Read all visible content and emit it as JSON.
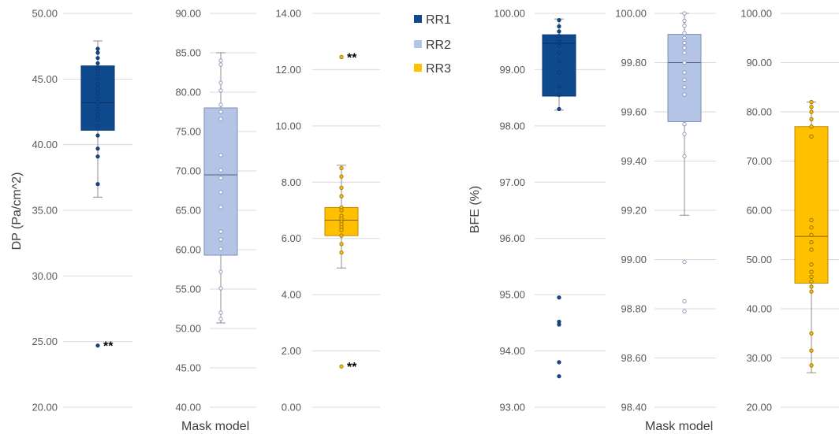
{
  "legend": [
    {
      "name": "RR1",
      "color": "#0f4a8f"
    },
    {
      "name": "RR2",
      "color": "#b4c4e6"
    },
    {
      "name": "RR3",
      "color": "#ffc000"
    }
  ],
  "xlabel": "Mask model",
  "chart_data": [
    {
      "type": "box",
      "group": "DP",
      "ylabel": "DP (Pa/cm^2)",
      "series": "RR1",
      "ylim": [
        20,
        50
      ],
      "ticks": [
        "20.00",
        "25.00",
        "30.00",
        "35.00",
        "40.00",
        "45.00",
        "50.00"
      ],
      "box": {
        "whisker_low": 36.0,
        "q1": 41.1,
        "median": 43.2,
        "q3": 46.0,
        "whisker_high": 47.9
      },
      "points": [
        47.3,
        47.0,
        46.6,
        46.2,
        45.8,
        45.4,
        45.0,
        44.6,
        44.3,
        43.9,
        43.5,
        43.1,
        42.7,
        42.3,
        41.9,
        41.4,
        40.7,
        39.7,
        39.1,
        37.0,
        24.7
      ],
      "annotations": [
        {
          "value": 24.7,
          "text": "**"
        }
      ]
    },
    {
      "type": "box",
      "group": "DP",
      "series": "RR2",
      "ylim": [
        40,
        90
      ],
      "ticks": [
        "40.00",
        "45.00",
        "50.00",
        "55.00",
        "60.00",
        "65.00",
        "70.00",
        "75.00",
        "80.00",
        "85.00",
        "90.00"
      ],
      "box": {
        "whisker_low": 50.7,
        "q1": 59.3,
        "median": 69.5,
        "q3": 78.0,
        "whisker_high": 85.0
      },
      "points": [
        84.0,
        83.5,
        81.2,
        80.2,
        78.4,
        77.5,
        76.6,
        72.0,
        70.1,
        69.1,
        67.3,
        65.4,
        62.3,
        61.3,
        60.1,
        57.2,
        55.1,
        52.0,
        51.2
      ],
      "annotations": []
    },
    {
      "type": "box",
      "group": "DP",
      "series": "RR3",
      "ylim": [
        0,
        14
      ],
      "ticks": [
        "0.00",
        "2.00",
        "4.00",
        "6.00",
        "8.00",
        "10.00",
        "12.00",
        "14.00"
      ],
      "box": {
        "whisker_low": 4.95,
        "q1": 6.1,
        "median": 6.65,
        "q3": 7.1,
        "whisker_high": 8.6
      },
      "points": [
        12.45,
        8.5,
        8.2,
        7.8,
        7.5,
        7.1,
        7.0,
        6.8,
        6.7,
        6.6,
        6.5,
        6.4,
        6.3,
        6.1,
        5.8,
        5.5,
        1.45
      ],
      "annotations": [
        {
          "value": 12.45,
          "text": "**"
        },
        {
          "value": 1.45,
          "text": "**"
        }
      ]
    },
    {
      "type": "box",
      "group": "BFE",
      "ylabel": "BFE (%)",
      "series": "RR1",
      "ylim": [
        93,
        100
      ],
      "ticks": [
        "93.00",
        "94.00",
        "95.00",
        "96.00",
        "97.00",
        "98.00",
        "99.00",
        "100.00"
      ],
      "box": {
        "whisker_low": 98.28,
        "q1": 98.53,
        "median": 99.47,
        "q3": 99.62,
        "whisker_high": 99.9
      },
      "points": [
        99.88,
        99.77,
        99.68,
        99.6,
        99.5,
        99.42,
        99.3,
        99.15,
        98.95,
        98.7,
        98.55,
        98.3,
        94.95,
        94.52,
        94.47,
        93.8,
        93.55
      ],
      "annotations": []
    },
    {
      "type": "box",
      "group": "BFE",
      "series": "RR2",
      "ylim": [
        98.4,
        100
      ],
      "ticks": [
        "98.40",
        "98.60",
        "98.80",
        "99.00",
        "99.20",
        "99.40",
        "99.60",
        "99.80",
        "100.00"
      ],
      "box": {
        "whisker_low": 99.18,
        "q1": 99.56,
        "median": 99.8,
        "q3": 99.915,
        "whisker_high": 100.0
      },
      "points": [
        100.0,
        99.97,
        99.95,
        99.92,
        99.9,
        99.88,
        99.86,
        99.84,
        99.8,
        99.76,
        99.73,
        99.7,
        99.67,
        99.55,
        99.51,
        99.42,
        98.99,
        98.83,
        98.79
      ],
      "annotations": []
    },
    {
      "type": "box",
      "group": "BFE",
      "series": "RR3",
      "ylim": [
        20,
        100
      ],
      "ticks": [
        "20.00",
        "30.00",
        "40.00",
        "50.00",
        "60.00",
        "70.00",
        "80.00",
        "90.00",
        "100.00"
      ],
      "box": {
        "whisker_low": 27.0,
        "q1": 45.2,
        "median": 54.7,
        "q3": 77.0,
        "whisker_high": 82.0
      },
      "points": [
        82.0,
        81.0,
        80.0,
        78.5,
        77.0,
        75.0,
        58.0,
        56.5,
        55.0,
        53.5,
        52.0,
        49.0,
        47.5,
        46.5,
        45.5,
        44.5,
        43.5,
        35.0,
        31.5,
        28.5
      ],
      "annotations": []
    }
  ]
}
